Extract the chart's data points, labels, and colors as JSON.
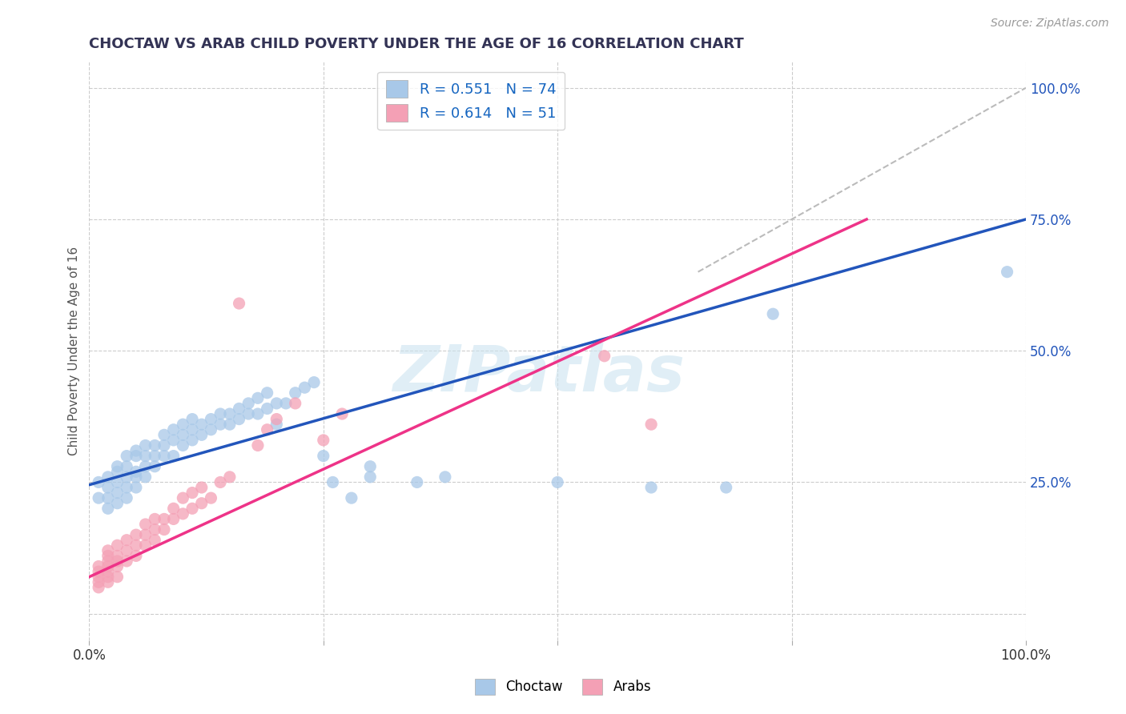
{
  "title": "CHOCTAW VS ARAB CHILD POVERTY UNDER THE AGE OF 16 CORRELATION CHART",
  "source": "Source: ZipAtlas.com",
  "ylabel": "Child Poverty Under the Age of 16",
  "choctaw_color": "#a8c8e8",
  "arab_color": "#f4a0b5",
  "choctaw_R": 0.551,
  "choctaw_N": 74,
  "arab_R": 0.614,
  "arab_N": 51,
  "watermark": "ZIPatlas",
  "background_color": "#ffffff",
  "grid_color": "#cccccc",
  "choctaw_line_color": "#2255bb",
  "arab_line_color": "#ee3388",
  "dashed_line_color": "#bbbbbb",
  "xlim": [
    0.0,
    1.0
  ],
  "ylim": [
    -0.05,
    1.05
  ],
  "xtick_positions": [
    0.0,
    0.25,
    0.5,
    0.75,
    1.0
  ],
  "xtick_labels": [
    "0.0%",
    "",
    "",
    "",
    "100.0%"
  ],
  "ytick_right_positions": [
    0.25,
    0.5,
    0.75,
    1.0
  ],
  "ytick_right_labels": [
    "25.0%",
    "50.0%",
    "75.0%",
    "100.0%"
  ],
  "choctaw_scatter": [
    [
      0.01,
      0.22
    ],
    [
      0.01,
      0.25
    ],
    [
      0.02,
      0.2
    ],
    [
      0.02,
      0.22
    ],
    [
      0.02,
      0.24
    ],
    [
      0.02,
      0.26
    ],
    [
      0.03,
      0.21
    ],
    [
      0.03,
      0.23
    ],
    [
      0.03,
      0.25
    ],
    [
      0.03,
      0.27
    ],
    [
      0.03,
      0.28
    ],
    [
      0.04,
      0.22
    ],
    [
      0.04,
      0.24
    ],
    [
      0.04,
      0.26
    ],
    [
      0.04,
      0.28
    ],
    [
      0.04,
      0.3
    ],
    [
      0.05,
      0.24
    ],
    [
      0.05,
      0.26
    ],
    [
      0.05,
      0.27
    ],
    [
      0.05,
      0.3
    ],
    [
      0.05,
      0.31
    ],
    [
      0.06,
      0.26
    ],
    [
      0.06,
      0.28
    ],
    [
      0.06,
      0.3
    ],
    [
      0.06,
      0.32
    ],
    [
      0.07,
      0.28
    ],
    [
      0.07,
      0.3
    ],
    [
      0.07,
      0.32
    ],
    [
      0.08,
      0.3
    ],
    [
      0.08,
      0.32
    ],
    [
      0.08,
      0.34
    ],
    [
      0.09,
      0.3
    ],
    [
      0.09,
      0.33
    ],
    [
      0.09,
      0.35
    ],
    [
      0.1,
      0.32
    ],
    [
      0.1,
      0.34
    ],
    [
      0.1,
      0.36
    ],
    [
      0.11,
      0.33
    ],
    [
      0.11,
      0.35
    ],
    [
      0.11,
      0.37
    ],
    [
      0.12,
      0.34
    ],
    [
      0.12,
      0.36
    ],
    [
      0.13,
      0.35
    ],
    [
      0.13,
      0.37
    ],
    [
      0.14,
      0.36
    ],
    [
      0.14,
      0.38
    ],
    [
      0.15,
      0.36
    ],
    [
      0.15,
      0.38
    ],
    [
      0.16,
      0.37
    ],
    [
      0.16,
      0.39
    ],
    [
      0.17,
      0.38
    ],
    [
      0.17,
      0.4
    ],
    [
      0.18,
      0.38
    ],
    [
      0.18,
      0.41
    ],
    [
      0.19,
      0.39
    ],
    [
      0.19,
      0.42
    ],
    [
      0.2,
      0.36
    ],
    [
      0.2,
      0.4
    ],
    [
      0.21,
      0.4
    ],
    [
      0.22,
      0.42
    ],
    [
      0.23,
      0.43
    ],
    [
      0.24,
      0.44
    ],
    [
      0.25,
      0.3
    ],
    [
      0.26,
      0.25
    ],
    [
      0.28,
      0.22
    ],
    [
      0.3,
      0.26
    ],
    [
      0.3,
      0.28
    ],
    [
      0.35,
      0.25
    ],
    [
      0.38,
      0.26
    ],
    [
      0.5,
      0.25
    ],
    [
      0.6,
      0.24
    ],
    [
      0.68,
      0.24
    ],
    [
      0.73,
      0.57
    ],
    [
      0.98,
      0.65
    ]
  ],
  "arab_scatter": [
    [
      0.01,
      0.05
    ],
    [
      0.01,
      0.06
    ],
    [
      0.01,
      0.07
    ],
    [
      0.01,
      0.08
    ],
    [
      0.01,
      0.09
    ],
    [
      0.02,
      0.06
    ],
    [
      0.02,
      0.07
    ],
    [
      0.02,
      0.08
    ],
    [
      0.02,
      0.09
    ],
    [
      0.02,
      0.1
    ],
    [
      0.02,
      0.11
    ],
    [
      0.02,
      0.12
    ],
    [
      0.03,
      0.07
    ],
    [
      0.03,
      0.09
    ],
    [
      0.03,
      0.1
    ],
    [
      0.03,
      0.11
    ],
    [
      0.03,
      0.13
    ],
    [
      0.04,
      0.1
    ],
    [
      0.04,
      0.12
    ],
    [
      0.04,
      0.14
    ],
    [
      0.05,
      0.11
    ],
    [
      0.05,
      0.13
    ],
    [
      0.05,
      0.15
    ],
    [
      0.06,
      0.13
    ],
    [
      0.06,
      0.15
    ],
    [
      0.06,
      0.17
    ],
    [
      0.07,
      0.14
    ],
    [
      0.07,
      0.16
    ],
    [
      0.07,
      0.18
    ],
    [
      0.08,
      0.16
    ],
    [
      0.08,
      0.18
    ],
    [
      0.09,
      0.18
    ],
    [
      0.09,
      0.2
    ],
    [
      0.1,
      0.19
    ],
    [
      0.1,
      0.22
    ],
    [
      0.11,
      0.2
    ],
    [
      0.11,
      0.23
    ],
    [
      0.12,
      0.21
    ],
    [
      0.12,
      0.24
    ],
    [
      0.13,
      0.22
    ],
    [
      0.14,
      0.25
    ],
    [
      0.15,
      0.26
    ],
    [
      0.16,
      0.59
    ],
    [
      0.18,
      0.32
    ],
    [
      0.19,
      0.35
    ],
    [
      0.2,
      0.37
    ],
    [
      0.22,
      0.4
    ],
    [
      0.25,
      0.33
    ],
    [
      0.27,
      0.38
    ],
    [
      0.55,
      0.49
    ],
    [
      0.6,
      0.36
    ]
  ],
  "choctaw_line": {
    "x0": 0.0,
    "y0": 0.245,
    "x1": 1.0,
    "y1": 0.75
  },
  "arab_line": {
    "x0": 0.0,
    "y0": 0.07,
    "x1": 0.83,
    "y1": 0.75
  }
}
